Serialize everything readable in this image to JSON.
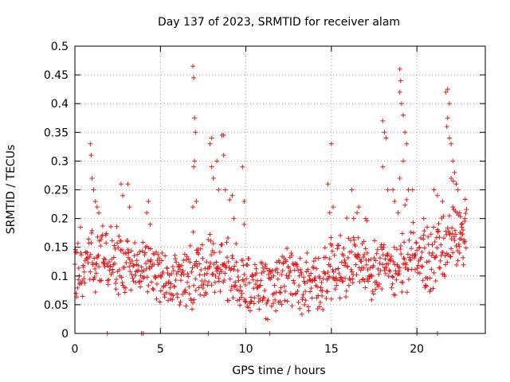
{
  "chart_data": {
    "type": "scatter",
    "title": "Day 137 of 2023, SRMTID for receiver alam",
    "xlabel": "GPS time / hours",
    "ylabel": "SRMTID / TECUs",
    "xlim": [
      0,
      24
    ],
    "ylim": [
      0,
      0.5
    ],
    "x_ticks": [
      0,
      5,
      10,
      15,
      20
    ],
    "x_tick_labels": [
      "0",
      "5",
      "10",
      "15",
      "20"
    ],
    "y_ticks": [
      0,
      0.05,
      0.1,
      0.15,
      0.2,
      0.25,
      0.3,
      0.35,
      0.4,
      0.45,
      0.5
    ],
    "y_tick_labels": [
      "0",
      "0.05",
      "0.1",
      "0.15",
      "0.2",
      "0.25",
      "0.3",
      "0.35",
      "0.4",
      "0.45",
      "0.5"
    ],
    "grid": true,
    "marker": "+",
    "series_color": "#e41a1c",
    "baseline_profile": [
      [
        0.0,
        0.11
      ],
      [
        1.0,
        0.13
      ],
      [
        2.0,
        0.13
      ],
      [
        3.0,
        0.12
      ],
      [
        4.0,
        0.12
      ],
      [
        5.0,
        0.09
      ],
      [
        6.0,
        0.09
      ],
      [
        7.0,
        0.1
      ],
      [
        8.0,
        0.12
      ],
      [
        9.0,
        0.11
      ],
      [
        10.0,
        0.08
      ],
      [
        11.0,
        0.08
      ],
      [
        12.0,
        0.09
      ],
      [
        13.0,
        0.09
      ],
      [
        14.0,
        0.09
      ],
      [
        15.0,
        0.11
      ],
      [
        16.0,
        0.12
      ],
      [
        17.0,
        0.12
      ],
      [
        18.0,
        0.11
      ],
      [
        19.0,
        0.12
      ],
      [
        20.0,
        0.13
      ],
      [
        21.0,
        0.13
      ],
      [
        22.0,
        0.16
      ],
      [
        23.0,
        0.17
      ]
    ],
    "peak_points": [
      [
        0.9,
        0.33
      ],
      [
        0.95,
        0.31
      ],
      [
        1.0,
        0.27
      ],
      [
        1.1,
        0.25
      ],
      [
        1.2,
        0.23
      ],
      [
        1.3,
        0.22
      ],
      [
        1.4,
        0.21
      ],
      [
        2.7,
        0.26
      ],
      [
        2.8,
        0.24
      ],
      [
        3.1,
        0.26
      ],
      [
        3.2,
        0.22
      ],
      [
        4.3,
        0.23
      ],
      [
        4.2,
        0.21
      ],
      [
        4.4,
        0.19
      ],
      [
        6.9,
        0.465
      ],
      [
        6.95,
        0.445
      ],
      [
        7.0,
        0.375
      ],
      [
        7.05,
        0.35
      ],
      [
        7.0,
        0.3
      ],
      [
        6.95,
        0.29
      ],
      [
        7.1,
        0.23
      ],
      [
        6.9,
        0.22
      ],
      [
        7.9,
        0.33
      ],
      [
        8.0,
        0.34
      ],
      [
        8.0,
        0.29
      ],
      [
        8.3,
        0.3
      ],
      [
        8.1,
        0.27
      ],
      [
        8.4,
        0.25
      ],
      [
        8.6,
        0.345
      ],
      [
        8.7,
        0.345
      ],
      [
        8.7,
        0.31
      ],
      [
        8.8,
        0.25
      ],
      [
        9.2,
        0.24
      ],
      [
        9.3,
        0.2
      ],
      [
        9.8,
        0.29
      ],
      [
        9.9,
        0.23
      ],
      [
        9.9,
        0.19
      ],
      [
        16.2,
        0.25
      ],
      [
        16.3,
        0.2
      ],
      [
        16.6,
        0.22
      ],
      [
        17.0,
        0.2
      ],
      [
        16.9,
        0.16
      ],
      [
        17.1,
        0.14
      ],
      [
        16.5,
        0.21
      ],
      [
        15.0,
        0.33
      ],
      [
        14.8,
        0.26
      ],
      [
        14.9,
        0.21
      ],
      [
        15.1,
        0.22
      ],
      [
        18.0,
        0.37
      ],
      [
        18.1,
        0.35
      ],
      [
        18.2,
        0.34
      ],
      [
        18.0,
        0.29
      ],
      [
        18.3,
        0.25
      ],
      [
        18.6,
        0.25
      ],
      [
        18.7,
        0.23
      ],
      [
        18.9,
        0.21
      ],
      [
        19.0,
        0.46
      ],
      [
        19.05,
        0.44
      ],
      [
        19.0,
        0.42
      ],
      [
        19.1,
        0.4
      ],
      [
        19.2,
        0.38
      ],
      [
        19.3,
        0.35
      ],
      [
        19.4,
        0.33
      ],
      [
        19.2,
        0.3
      ],
      [
        19.0,
        0.27
      ],
      [
        19.5,
        0.25
      ],
      [
        20.4,
        0.2
      ],
      [
        21.0,
        0.25
      ],
      [
        21.2,
        0.24
      ],
      [
        21.5,
        0.23
      ],
      [
        21.7,
        0.42
      ],
      [
        21.8,
        0.425
      ],
      [
        21.9,
        0.4
      ],
      [
        21.8,
        0.375
      ],
      [
        21.75,
        0.36
      ],
      [
        21.9,
        0.34
      ],
      [
        22.0,
        0.33
      ],
      [
        22.1,
        0.3
      ],
      [
        22.2,
        0.28
      ],
      [
        22.0,
        0.27
      ],
      [
        22.3,
        0.26
      ],
      [
        22.4,
        0.25
      ],
      [
        22.1,
        0.22
      ],
      [
        22.5,
        0.21
      ],
      [
        22.8,
        0.2
      ],
      [
        22.6,
        0.19
      ],
      [
        22.7,
        0.18
      ],
      [
        22.8,
        0.16
      ],
      [
        22.5,
        0.14
      ]
    ],
    "zero_points": [
      1.9,
      3.9,
      4.0,
      7.8,
      11.4,
      20.0,
      21.2
    ]
  }
}
